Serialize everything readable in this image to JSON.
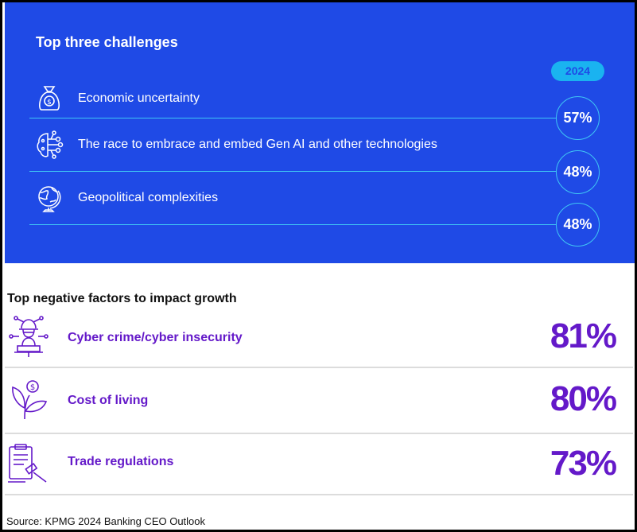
{
  "challenges": {
    "title": "Top three challenges",
    "year": "2024",
    "items": [
      {
        "label": "Economic uncertainty",
        "value": "57%",
        "icon": "money-bag-icon"
      },
      {
        "label": "The race to embrace and embed Gen AI and other technologies",
        "value": "48%",
        "icon": "ai-brain-icon"
      },
      {
        "label": "Geopolitical complexities",
        "value": "48%",
        "icon": "globe-icon"
      }
    ]
  },
  "negatives": {
    "title": "Top negative factors to impact growth",
    "items": [
      {
        "label": "Cyber crime/cyber insecurity",
        "value": "81%",
        "icon": "hacker-icon"
      },
      {
        "label": "Cost of living",
        "value": "80%",
        "icon": "money-plant-icon"
      },
      {
        "label": "Trade regulations",
        "value": "73%",
        "icon": "gavel-clipboard-icon"
      }
    ]
  },
  "source": "Source: KPMG 2024 Banking CEO Outlook",
  "colors": {
    "blue_panel": "#1f4ae6",
    "cyan_accent": "#3fc6f4",
    "badge": "#1ab3f0",
    "purple": "#6419c9"
  }
}
